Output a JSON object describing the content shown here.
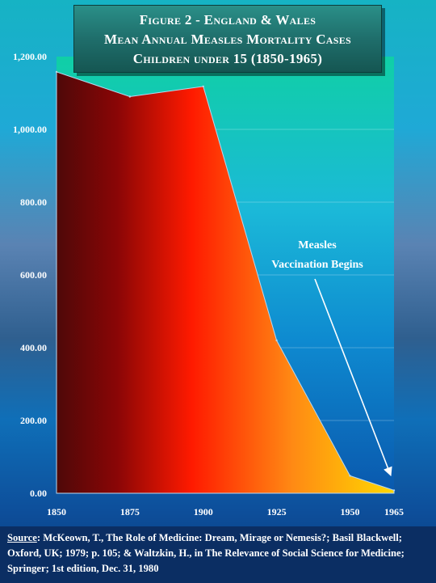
{
  "chart_data": {
    "type": "area",
    "title_lines": [
      "Figure 2 - England & Wales",
      "Mean Annual Measles Mortality Cases",
      "Children under 15 (1850-1965)"
    ],
    "x": [
      1850,
      1875,
      1900,
      1925,
      1950,
      1965
    ],
    "y": [
      1158,
      1090,
      1118,
      420,
      48,
      8
    ],
    "x_ticks": [
      "1850",
      "1875",
      "1900",
      "1925",
      "1950",
      "1965"
    ],
    "y_ticks": [
      "0.00",
      "200.00",
      "400.00",
      "600.00",
      "800.00",
      "1,000.00",
      "1,200.00"
    ],
    "ylim": [
      0,
      1200
    ],
    "grid": true,
    "annotation": {
      "lines": [
        "Measles",
        "Vaccination Begins"
      ],
      "points_to_year": 1965
    }
  },
  "source": {
    "label": "Source",
    "text": ":  McKeown, T., The Role of Medicine: Dream, Mirage or Nemesis?; Basil Blackwell; Oxford, UK; 1979; p. 105; & Waltzkin, H., in The Relevance of Social Science for Medicine; Springer; 1st edition, Dec. 31, 1980"
  },
  "colors": {
    "area_dark": "#5a0a0a",
    "area_red": "#ff1a00",
    "area_yellow": "#ffd400",
    "plot_top": "#10c9a8",
    "plot_bottom": "#0b5cb0"
  }
}
